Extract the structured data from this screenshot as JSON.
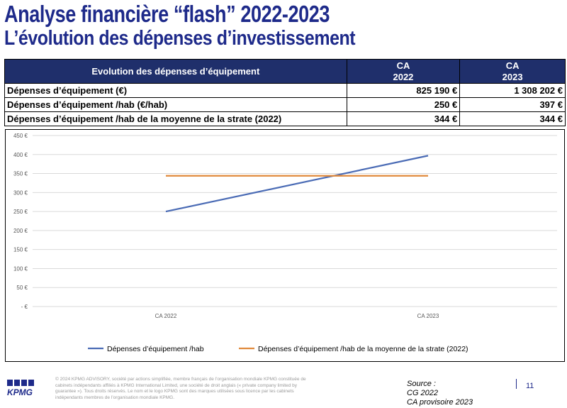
{
  "header": {
    "title": "Analyse financière “flash” 2022-2023",
    "subtitle": "L’évolution des dépenses d’investissement"
  },
  "table": {
    "header_label": "Evolution des dépenses d’équipement",
    "columns": [
      "CA\n2022",
      "CA\n2023"
    ],
    "rows": [
      {
        "label": "Dépenses d’équipement (€)",
        "v2022": "825 190 €",
        "v2023": "1 308 202 €"
      },
      {
        "label": "Dépenses d’équipement /hab (€/hab)",
        "v2022": "250 €",
        "v2023": "397 €"
      },
      {
        "label": "Dépenses d’équipement /hab de la moyenne de la strate (2022)",
        "v2022": "344 €",
        "v2023": "344 €"
      }
    ]
  },
  "chart_data": {
    "type": "line",
    "title": "",
    "xlabel": "",
    "ylabel": "",
    "categories": [
      "CA 2022",
      "CA 2023"
    ],
    "ylim": [
      0,
      450
    ],
    "yticks": [
      0,
      50,
      100,
      150,
      200,
      250,
      300,
      350,
      400,
      450
    ],
    "ytick_labels": [
      "-  €",
      "50 €",
      "100 €",
      "150 €",
      "200 €",
      "250 €",
      "300 €",
      "350 €",
      "400 €",
      "450 €"
    ],
    "grid": true,
    "legend_position": "bottom",
    "series": [
      {
        "name": "Dépenses d’équipement /hab",
        "values": [
          250,
          397
        ],
        "color": "#4a6bb5"
      },
      {
        "name": "Dépenses d’équipement /hab de la moyenne de la strate (2022)",
        "values": [
          344,
          344
        ],
        "color": "#e08a3c"
      }
    ]
  },
  "footer": {
    "logo": "KPMG",
    "legal": "© 2024 KPMG ADVISORY, société par actions simplifiée, membre français de l’organisation mondiale KPMG constituée de cabinets indépendants affiliés à KPMG International Limited, une société de droit anglais (« private company limited by guarantee »). Tous droits réservés. Le nom et le logo KPMG sont des marques utilisées sous licence par les cabinets indépendants membres de l’organisation mondiale KPMG.",
    "source_lines": [
      "Source :",
      "CG 2022",
      "CA provisoire 2023"
    ],
    "page_number": "11"
  }
}
